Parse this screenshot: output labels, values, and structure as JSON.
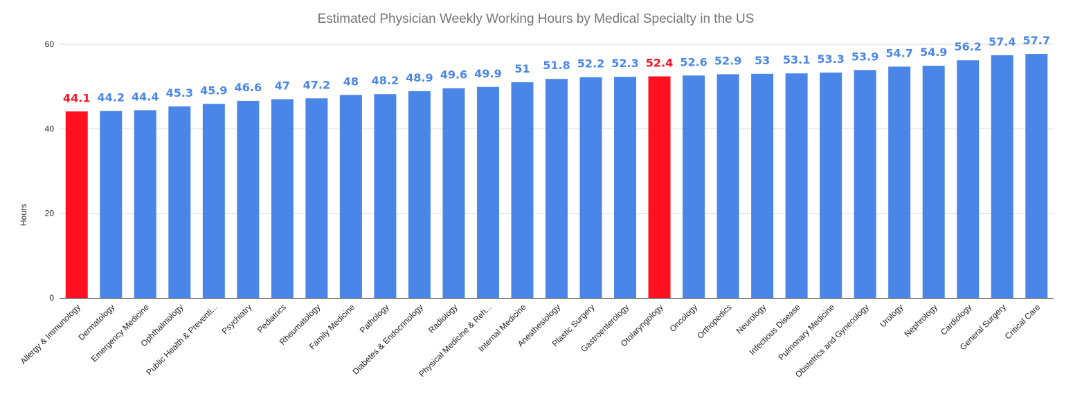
{
  "chart_data": {
    "type": "bar",
    "title": "Estimated Physician Weekly Working Hours by Medical Specialty in the US",
    "xlabel": "",
    "ylabel": "Hours",
    "ylim": [
      0,
      60
    ],
    "yticks": [
      "0",
      "20",
      "40",
      "60"
    ],
    "grid": true,
    "legend": "none",
    "colors": {
      "default": "#4a86e8",
      "highlight": "#ff1020"
    },
    "categories": [
      "Allergy & Immunology",
      "Dermatology",
      "Emergency Medicine",
      "Ophthalmology",
      "Public Health & Preventi...",
      "Psychiatry",
      "Pediatrics",
      "Rheumatology",
      "Family Medicine",
      "Pathology",
      "Diabetes & Endocrinology",
      "Radiology",
      "Physical Medicine & Reh...",
      "Internal Medicine",
      "Anesthesiology",
      "Plastic Surgery",
      "Gastroenterology",
      "Otolaryngology",
      "Oncology",
      "Orthopedics",
      "Neurology",
      "Infectious Disease",
      "Pulmonary Medicine",
      "Obstetrics and Gynecology",
      "Urology",
      "Nephrology",
      "Cardiology",
      "General Surgery",
      "Critical Care"
    ],
    "values": [
      44.1,
      44.2,
      44.4,
      45.3,
      45.9,
      46.6,
      47,
      47.2,
      48,
      48.2,
      48.9,
      49.6,
      49.9,
      51,
      51.8,
      52.2,
      52.3,
      52.4,
      52.6,
      52.9,
      53,
      53.1,
      53.3,
      53.9,
      54.7,
      54.9,
      56.2,
      57.4,
      57.7
    ],
    "value_labels": [
      "44.1",
      "44.2",
      "44.4",
      "45.3",
      "45.9",
      "46.6",
      "47",
      "47.2",
      "48",
      "48.2",
      "48.9",
      "49.6",
      "49.9",
      "51",
      "51.8",
      "52.2",
      "52.3",
      "52.4",
      "52.6",
      "52.9",
      "53",
      "53.1",
      "53.3",
      "53.9",
      "54.7",
      "54.9",
      "56.2",
      "57.4",
      "57.7"
    ],
    "highlighted": [
      "Allergy & Immunology",
      "Otolaryngology"
    ]
  }
}
